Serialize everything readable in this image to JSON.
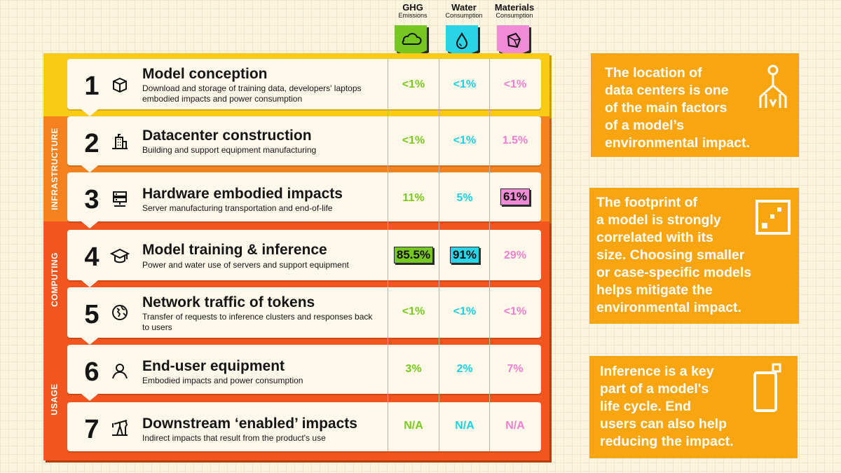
{
  "chart_data": {
    "type": "table",
    "columns": [
      {
        "title": "GHG",
        "subtitle": "Emissions",
        "icon": "cloud-icon",
        "color": "#77c722"
      },
      {
        "title": "Water",
        "subtitle": "Consumption",
        "icon": "water-drop-icon",
        "color": "#28d4e6"
      },
      {
        "title": "Materials",
        "subtitle": "Consumption",
        "icon": "mineral-icon",
        "color": "#f28bd6"
      }
    ],
    "sections": [
      {
        "label": "INFRASTRUCTURE",
        "color": "#f6811f",
        "rows": [
          "2",
          "3"
        ]
      },
      {
        "label": "COMPUTING",
        "color": "#f2561e",
        "rows": [
          "4",
          "5"
        ]
      },
      {
        "label": "USAGE",
        "color": "#f2561e",
        "rows": [
          "6",
          "7"
        ]
      }
    ],
    "rows": [
      {
        "num": "1",
        "title": "Model conception",
        "desc": "Download and storage of training data, developers' laptops embodied impacts and power consumption",
        "icon": "cube-icon",
        "values": [
          "<1%",
          "<1%",
          "<1%"
        ]
      },
      {
        "num": "2",
        "title": "Datacenter construction",
        "desc": "Building and support equipment manufacturing",
        "icon": "building-icon",
        "values": [
          "<1%",
          "<1%",
          "1.5%"
        ]
      },
      {
        "num": "3",
        "title": "Hardware embodied impacts",
        "desc": "Server manufacturing transportation and end-of-life",
        "icon": "server-icon",
        "values": [
          "11%",
          "5%",
          "61%"
        ]
      },
      {
        "num": "4",
        "title": "Model training & inference",
        "desc": "Power and water use of servers and support equipment",
        "icon": "graduation-cap-icon",
        "values": [
          "85.5%",
          "91%",
          "29%"
        ]
      },
      {
        "num": "5",
        "title": "Network traffic of tokens",
        "desc": "Transfer of requests to inference clusters and responses back to users",
        "icon": "globe-icon",
        "values": [
          "<1%",
          "<1%",
          "<1%"
        ]
      },
      {
        "num": "6",
        "title": "End-user equipment",
        "desc": "Embodied impacts and power consumption",
        "icon": "user-icon",
        "values": [
          "3%",
          "2%",
          "7%"
        ]
      },
      {
        "num": "7",
        "title": "Downstream ‘enabled’ impacts",
        "desc": "Indirect impacts that result from the product's use",
        "icon": "oil-pump-icon",
        "values": [
          "N/A",
          "N/A",
          "N/A"
        ]
      }
    ],
    "highlighted": [
      {
        "row": "3",
        "column": "Materials"
      },
      {
        "row": "4",
        "column": "GHG"
      },
      {
        "row": "4",
        "column": "Water"
      }
    ]
  },
  "callouts": [
    {
      "text_lines": [
        "The location of",
        "data centers is one",
        "of the main factors",
        "of a model’s",
        "environmental impact."
      ],
      "icon": "datacenter-location-icon"
    },
    {
      "text_lines": [
        "The footprint of",
        "a model is strongly",
        "correlated with its",
        "size. Choosing smaller",
        "or case-specific models",
        "helps mitigate the",
        "environmental impact."
      ],
      "icon": "size-box-icon"
    },
    {
      "text_lines": [
        "Inference is a key",
        "part of a model's",
        "life cycle. End",
        "users can also help",
        "reducing the impact."
      ],
      "icon": "smartphone-icon"
    }
  ],
  "colors": {
    "background": "#fbf4df",
    "conception_band": "#f9cb14",
    "infrastructure_band": "#f6811f",
    "computing_band": "#f2561e",
    "usage_band": "#f2561e",
    "callout": "#f8a50f"
  }
}
